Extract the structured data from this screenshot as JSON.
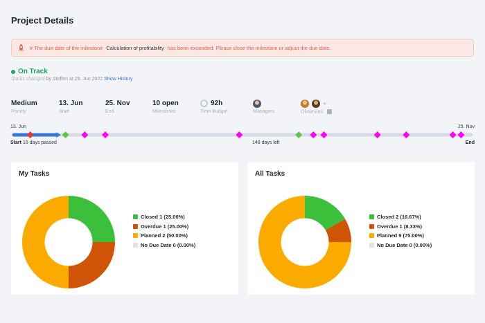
{
  "header": {
    "title": "Project Details"
  },
  "alert": {
    "prefix": "# The due date of the milestone",
    "milestone": "Calculation of profitability",
    "suffix": "has been exceeded. Please close the milestone or adjust the due date.",
    "icon": "rocket-icon"
  },
  "status": {
    "label": "On Track",
    "changed_label": "Status changed",
    "changed_by": "by Steffen at 29. Jun 2022",
    "history_link": "Show History"
  },
  "info": [
    {
      "value": "Medium",
      "label": "Priority"
    },
    {
      "value": "13. Jun",
      "label": "Start"
    },
    {
      "value": "25. Nov",
      "label": "End"
    },
    {
      "value": "10 open",
      "label": "Milestones"
    },
    {
      "value": "92h",
      "label": "Time Budget"
    },
    {
      "value": "",
      "label": "Managers"
    },
    {
      "value": "+",
      "label": "Observers"
    }
  ],
  "timeline": {
    "start_date": "13. Jun",
    "end_date": "25. Nov",
    "start_label": "Start",
    "passed": "16 days passed",
    "left": "148 days left",
    "end_label": "End",
    "progress": 0.1,
    "colors": {
      "track": "#d6dbe6",
      "progress": "#3a78d8",
      "open": "#ff00ff",
      "done": "#5cc744",
      "overdue": "#e23b2b"
    },
    "milestones": [
      {
        "pos": 0.036,
        "status": "overdue"
      },
      {
        "pos": 0.113,
        "status": "done"
      },
      {
        "pos": 0.155,
        "status": "open"
      },
      {
        "pos": 0.2,
        "status": "open"
      },
      {
        "pos": 0.493,
        "status": "open"
      },
      {
        "pos": 0.623,
        "status": "done"
      },
      {
        "pos": 0.655,
        "status": "open"
      },
      {
        "pos": 0.678,
        "status": "open"
      },
      {
        "pos": 0.795,
        "status": "open"
      },
      {
        "pos": 0.858,
        "status": "open"
      },
      {
        "pos": 0.96,
        "status": "open"
      },
      {
        "pos": 0.978,
        "status": "open"
      }
    ]
  },
  "chart_data": [
    {
      "type": "pie",
      "title": "My Tasks",
      "categories": [
        "Closed",
        "Overdue",
        "Planned",
        "No Due Date"
      ],
      "values": [
        1,
        1,
        2,
        0
      ],
      "legend": [
        "Closed 1 (25.00%)",
        "Overdue 1 (25.00%)",
        "Planned 2 (50.00%)",
        "No Due Date 0 (0.00%)"
      ],
      "colors": [
        "#3cbf3a",
        "#d05406",
        "#fbab00",
        "#dfe2e8"
      ],
      "legend_position": "right"
    },
    {
      "type": "pie",
      "title": "All Tasks",
      "categories": [
        "Closed",
        "Overdue",
        "Planned",
        "No Due Date"
      ],
      "values": [
        2,
        1,
        9,
        0
      ],
      "legend": [
        "Closed 2 (16.67%)",
        "Overdue 1 (8.33%)",
        "Planned 9 (75.00%)",
        "No Due Date 0 (0.00%)"
      ],
      "colors": [
        "#3cbf3a",
        "#d05406",
        "#fbab00",
        "#dfe2e8"
      ],
      "legend_position": "right"
    }
  ]
}
